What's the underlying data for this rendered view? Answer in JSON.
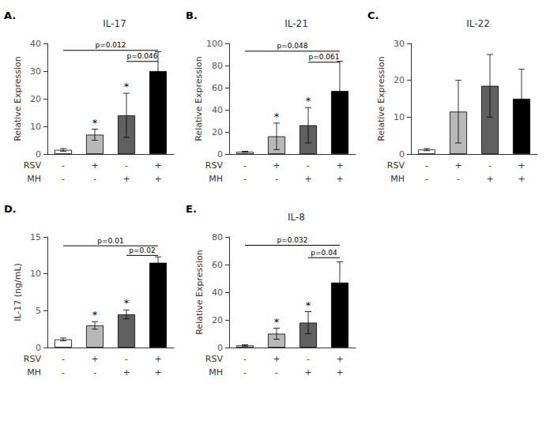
{
  "chart_data": [
    {
      "type": "bar",
      "panel_label": "A.",
      "title": "IL-17",
      "ylabel": "Relative Expression",
      "ylim": [
        0,
        40
      ],
      "yticks": [
        0,
        10,
        20,
        30,
        40
      ],
      "values": [
        1.5,
        7.0,
        14.0,
        30.0
      ],
      "errors": [
        0.5,
        2.0,
        8.0,
        7.0
      ],
      "colors": [
        "white",
        "#b8b8b8",
        "#606060",
        "black"
      ],
      "annotations": [
        {
          "bar": 1,
          "text": "*"
        },
        {
          "bar": 2,
          "text": "*"
        }
      ],
      "sig_lines": [
        {
          "x1": 0,
          "x2": 3,
          "y": 37.5,
          "label": "p=0.012"
        },
        {
          "x1": 2,
          "x2": 3,
          "y": 33.5,
          "label": "p=0.046"
        }
      ],
      "x_label_rows": [
        {
          "name": "RSV",
          "labels": [
            "-",
            "+",
            "-",
            "+"
          ]
        },
        {
          "name": "MH",
          "labels": [
            "-",
            "-",
            "+",
            "+"
          ]
        }
      ],
      "grid": false
    },
    {
      "type": "bar",
      "panel_label": "B.",
      "title": "IL-21",
      "ylabel": "Relative Expression",
      "ylim": [
        0,
        100
      ],
      "yticks": [
        0,
        20,
        40,
        60,
        80,
        100
      ],
      "values": [
        2.0,
        16.0,
        26.0,
        57.0
      ],
      "errors": [
        0.5,
        12.0,
        16.0,
        27.0
      ],
      "colors": [
        "white",
        "#b8b8b8",
        "#606060",
        "black"
      ],
      "annotations": [
        {
          "bar": 1,
          "text": "*"
        },
        {
          "bar": 2,
          "text": "*"
        }
      ],
      "sig_lines": [
        {
          "x1": 0,
          "x2": 3,
          "y": 93,
          "label": "p=0.048"
        },
        {
          "x1": 2,
          "x2": 3,
          "y": 83,
          "label": "p=0.061"
        }
      ],
      "x_label_rows": [
        {
          "name": "RSV",
          "labels": [
            "-",
            "+",
            "-",
            "+"
          ]
        },
        {
          "name": "MH",
          "labels": [
            "-",
            "-",
            "+",
            "+"
          ]
        }
      ],
      "grid": false
    },
    {
      "type": "bar",
      "panel_label": "C.",
      "title": "IL-22",
      "ylabel": "Relative Expression",
      "ylim": [
        0,
        30
      ],
      "yticks": [
        0,
        10,
        20,
        30
      ],
      "values": [
        1.2,
        11.5,
        18.5,
        15.0
      ],
      "errors": [
        0.3,
        8.5,
        8.5,
        8.0
      ],
      "colors": [
        "white",
        "#b8b8b8",
        "#606060",
        "black"
      ],
      "annotations": [],
      "sig_lines": [],
      "x_label_rows": [
        {
          "name": "RSV",
          "labels": [
            "-",
            "+",
            "-",
            "+"
          ]
        },
        {
          "name": "MH",
          "labels": [
            "-",
            "-",
            "+",
            "+"
          ]
        }
      ],
      "grid": false
    },
    {
      "type": "bar",
      "panel_label": "D.",
      "ylabel": "IL-17 (ng/mL)",
      "ylim": [
        0,
        15
      ],
      "yticks": [
        0,
        5,
        10,
        15
      ],
      "values": [
        1.1,
        3.0,
        4.5,
        11.5
      ],
      "errors": [
        0.2,
        0.5,
        0.6,
        0.8
      ],
      "colors": [
        "white",
        "#b8b8b8",
        "#606060",
        "black"
      ],
      "annotations": [
        {
          "bar": 1,
          "text": "*"
        },
        {
          "bar": 2,
          "text": "*"
        }
      ],
      "sig_lines": [
        {
          "x1": 0,
          "x2": 3,
          "y": 13.8,
          "label": "p=0.01"
        },
        {
          "x1": 2,
          "x2": 3,
          "y": 12.5,
          "label": "p=0.02"
        }
      ],
      "x_label_rows": [
        {
          "name": "RSV",
          "labels": [
            "-",
            "+",
            "-",
            "+"
          ]
        },
        {
          "name": "MH",
          "labels": [
            "-",
            "-",
            "+",
            "+"
          ]
        }
      ],
      "grid": false
    },
    {
      "type": "bar",
      "panel_label": "E.",
      "title": "IL-8",
      "ylabel": "Relative Expression",
      "ylim": [
        0,
        80
      ],
      "yticks": [
        0,
        20,
        40,
        60,
        80
      ],
      "values": [
        1.5,
        10.0,
        18.0,
        47.0
      ],
      "errors": [
        0.5,
        4.0,
        8.0,
        15.0
      ],
      "colors": [
        "white",
        "#b8b8b8",
        "#606060",
        "black"
      ],
      "annotations": [
        {
          "bar": 1,
          "text": "*"
        },
        {
          "bar": 2,
          "text": "*"
        }
      ],
      "sig_lines": [
        {
          "x1": 0,
          "x2": 3,
          "y": 74,
          "label": "p=0.032"
        },
        {
          "x1": 2,
          "x2": 3,
          "y": 65,
          "label": "p=0.04"
        }
      ],
      "x_label_rows": [
        {
          "name": "RSV",
          "labels": [
            "-",
            "+",
            "-",
            "+"
          ]
        },
        {
          "name": "MH",
          "labels": [
            "-",
            "-",
            "+",
            "+"
          ]
        }
      ],
      "grid": false
    }
  ]
}
